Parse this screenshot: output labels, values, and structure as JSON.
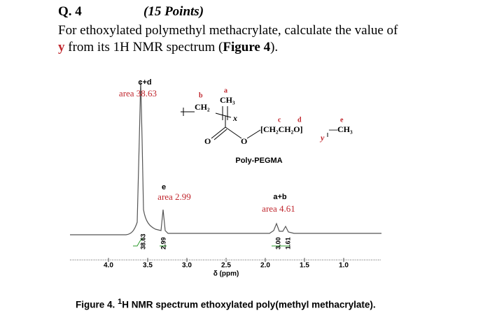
{
  "question": {
    "number": "Q. 4",
    "points": "(15 Points)",
    "line1": "For ethoxylated polymethyl methacrylate, calculate the value of",
    "variable": "y",
    "line2_mid": " from its 1H NMR spectrum (",
    "figure_ref": "Figure 4",
    "line2_end": ")."
  },
  "figure": {
    "peaks": [
      {
        "label": "c+d",
        "area": "area 38.63",
        "integral": "38.63"
      },
      {
        "label": "e",
        "area": "area 2.99",
        "integral": "2.99"
      },
      {
        "label": "a+b",
        "area": "area 4.61",
        "integrals": [
          "3.00",
          "1.61"
        ]
      }
    ],
    "structure": {
      "b": "b",
      "a": "a",
      "ch2": "CH₂",
      "ch3_top": "CH₃",
      "x": "x",
      "c": "c",
      "d": "d",
      "e": "e",
      "oxy_unit": "[CH₂CH₂O]",
      "y": "y",
      "ch3_end": "—CH₃",
      "o_double": "O",
      "o_ester": "O",
      "name": "Poly-PEGMA"
    },
    "axis": {
      "ticks": [
        "4.0",
        "3.5",
        "3.0",
        "2.5",
        "2.0",
        "1.5",
        "1.0"
      ],
      "label": "δ (ppm)"
    },
    "caption": {
      "prefix": "Figure 4. ",
      "sup": "1",
      "text": "H NMR spectrum ethoxylated poly(methyl methacrylate)."
    }
  }
}
